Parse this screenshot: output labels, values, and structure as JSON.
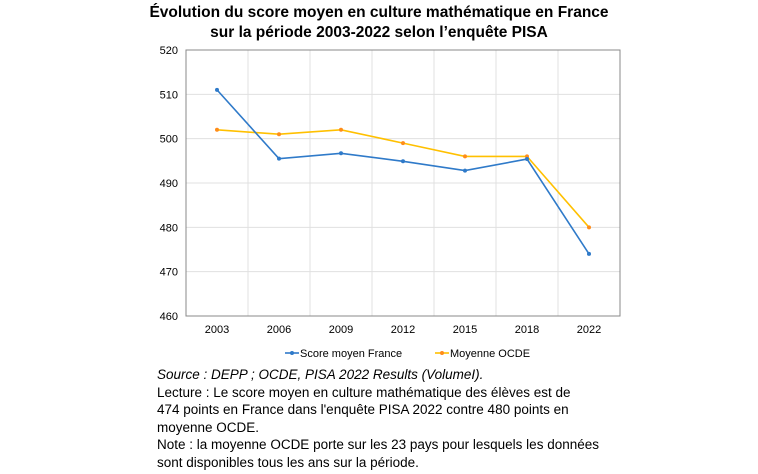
{
  "chart_data": {
    "type": "line",
    "title": [
      "Évolution du score moyen en culture mathématique en France",
      "sur la période 2003-2022 selon l’enquête PISA"
    ],
    "categories": [
      "2003",
      "2006",
      "2009",
      "2012",
      "2015",
      "2018",
      "2022"
    ],
    "series": [
      {
        "name": "Score moyen France",
        "color": "#2f7ac9",
        "values": [
          511,
          495.5,
          496.7,
          494.9,
          492.8,
          495.4,
          474
        ]
      },
      {
        "name": "Moyenne OCDE",
        "color": "#ffc000",
        "marker_color": "#ff8c1a",
        "values": [
          502,
          501,
          502,
          499,
          496,
          496,
          480
        ]
      }
    ],
    "ylim": [
      460,
      520
    ],
    "yticks": [
      "460",
      "470",
      "480",
      "490",
      "500",
      "510",
      "520"
    ],
    "grid": true,
    "legend": "bottom",
    "xlabel": "",
    "ylabel": ""
  },
  "notes": {
    "source": "Source : DEPP ; OCDE, PISA 2022 Results (VolumeI).",
    "lecture": [
      "Lecture : Le score moyen en culture mathématique des élèves est de",
      "474 points en France dans l'enquête PISA 2022 contre 480 points en",
      "moyenne OCDE."
    ],
    "note": [
      "Note : la moyenne OCDE porte sur les 23 pays pour lesquels les données",
      "sont disponibles tous les ans sur la période."
    ]
  }
}
